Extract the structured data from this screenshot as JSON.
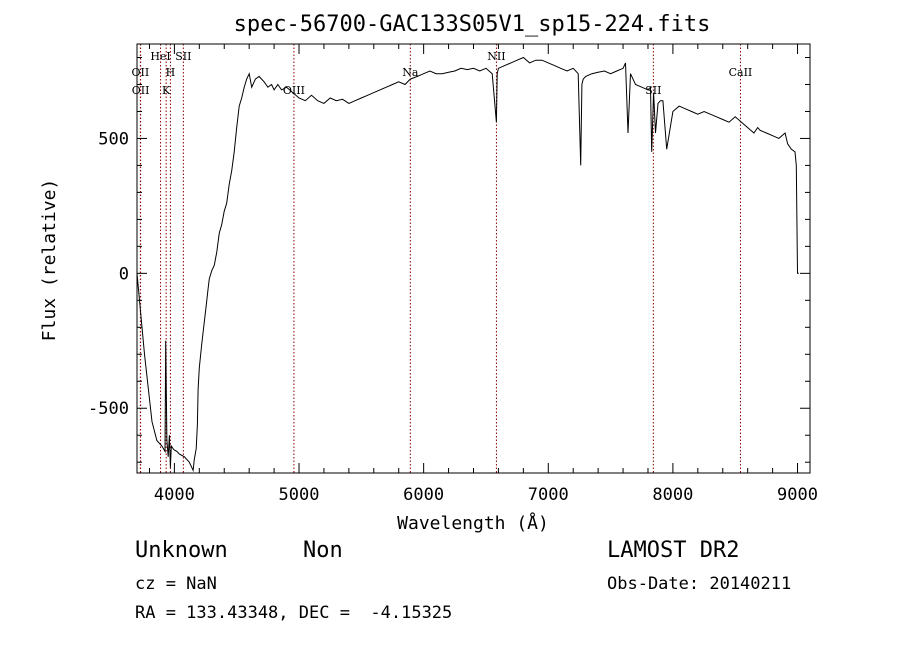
{
  "chart_data": {
    "type": "line",
    "title": "spec-56700-GAC133S05V1_sp15-224.fits",
    "xlabel": "Wavelength (Å)",
    "ylabel": "Flux (relative)",
    "xlim": [
      3700,
      9100
    ],
    "ylim": [
      -740,
      850
    ],
    "xticks": [
      4000,
      5000,
      6000,
      7000,
      8000,
      9000
    ],
    "yticks": [
      -500,
      0,
      500
    ],
    "grid": false,
    "line_color": "#000000",
    "marker_color": "#8b0000",
    "markers": [
      {
        "label": "OII",
        "x": 3727
      },
      {
        "label": "OII",
        "x": 3729
      },
      {
        "label": "HeI",
        "x": 3889
      },
      {
        "label": "H",
        "x": 3968
      },
      {
        "label": "K",
        "x": 3934
      },
      {
        "label": "SII",
        "x": 4072
      },
      {
        "label": "OIII",
        "x": 4959
      },
      {
        "label": "Na",
        "x": 5893
      },
      {
        "label": "NII",
        "x": 6584
      },
      {
        "label": "SII",
        "x": 7843
      },
      {
        "label": "CaII",
        "x": 8542
      }
    ],
    "series": [
      {
        "x": [
          3700,
          3760,
          3820,
          3860,
          3900,
          3925,
          3930,
          3940,
          3950,
          3960,
          3968,
          3975,
          3990,
          4000,
          4020,
          4040,
          4080,
          4120,
          4150,
          4160,
          4175,
          4185,
          4190,
          4200,
          4220,
          4240,
          4260,
          4270,
          4280,
          4300,
          4320,
          4340,
          4360,
          4380,
          4400,
          4420,
          4440,
          4460,
          4480,
          4500,
          4520,
          4540,
          4560,
          4580,
          4600,
          4620,
          4650,
          4680,
          4700,
          4720,
          4750,
          4780,
          4800,
          4830,
          4860,
          4900,
          4950,
          5000,
          5050,
          5100,
          5150,
          5200,
          5250,
          5300,
          5350,
          5400,
          5450,
          5500,
          5550,
          5600,
          5650,
          5700,
          5750,
          5800,
          5850,
          5893,
          5950,
          6000,
          6050,
          6100,
          6150,
          6200,
          6250,
          6300,
          6350,
          6400,
          6450,
          6500,
          6550,
          6584,
          6590,
          6600,
          6650,
          6700,
          6750,
          6800,
          6850,
          6900,
          6950,
          7000,
          7050,
          7100,
          7150,
          7200,
          7240,
          7260,
          7270,
          7280,
          7300,
          7350,
          7400,
          7450,
          7500,
          7550,
          7600,
          7620,
          7640,
          7660,
          7680,
          7700,
          7750,
          7800,
          7820,
          7830,
          7845,
          7860,
          7880,
          7900,
          7920,
          7950,
          8000,
          8050,
          8100,
          8150,
          8200,
          8250,
          8300,
          8350,
          8400,
          8450,
          8500,
          8550,
          8600,
          8650,
          8680,
          8700,
          8750,
          8800,
          8850,
          8900,
          8920,
          8950,
          8980,
          8990,
          9000,
          9010
        ],
        "y": [
          0,
          -300,
          -550,
          -620,
          -640,
          -660,
          -250,
          -620,
          -680,
          -600,
          -720,
          -640,
          -650,
          -655,
          -660,
          -670,
          -680,
          -700,
          -730,
          -690,
          -650,
          -560,
          -430,
          -350,
          -260,
          -180,
          -100,
          -60,
          -20,
          10,
          30,
          80,
          150,
          180,
          230,
          260,
          330,
          380,
          450,
          540,
          620,
          650,
          690,
          720,
          740,
          690,
          720,
          730,
          720,
          710,
          690,
          700,
          680,
          700,
          680,
          690,
          670,
          650,
          640,
          660,
          640,
          630,
          650,
          640,
          645,
          630,
          640,
          650,
          660,
          670,
          680,
          690,
          700,
          710,
          700,
          720,
          730,
          740,
          750,
          740,
          740,
          745,
          750,
          760,
          755,
          760,
          750,
          760,
          740,
          560,
          740,
          760,
          770,
          780,
          790,
          800,
          780,
          790,
          790,
          780,
          770,
          760,
          750,
          760,
          740,
          400,
          700,
          720,
          730,
          740,
          745,
          750,
          740,
          750,
          760,
          780,
          520,
          740,
          720,
          700,
          690,
          680,
          690,
          450,
          670,
          520,
          630,
          640,
          640,
          460,
          600,
          620,
          610,
          600,
          590,
          600,
          590,
          580,
          570,
          560,
          580,
          560,
          540,
          520,
          540,
          530,
          520,
          510,
          500,
          520,
          480,
          460,
          450,
          400,
          0,
          0
        ]
      }
    ]
  },
  "info": {
    "class_label": "Unknown",
    "subclass_label": "Non",
    "survey_label": "LAMOST DR2",
    "cz_label": "cz = NaN",
    "obs_date_label": "Obs-Date: 20140211",
    "radec_label": "RA = 133.43348, DEC =  -4.15325"
  }
}
